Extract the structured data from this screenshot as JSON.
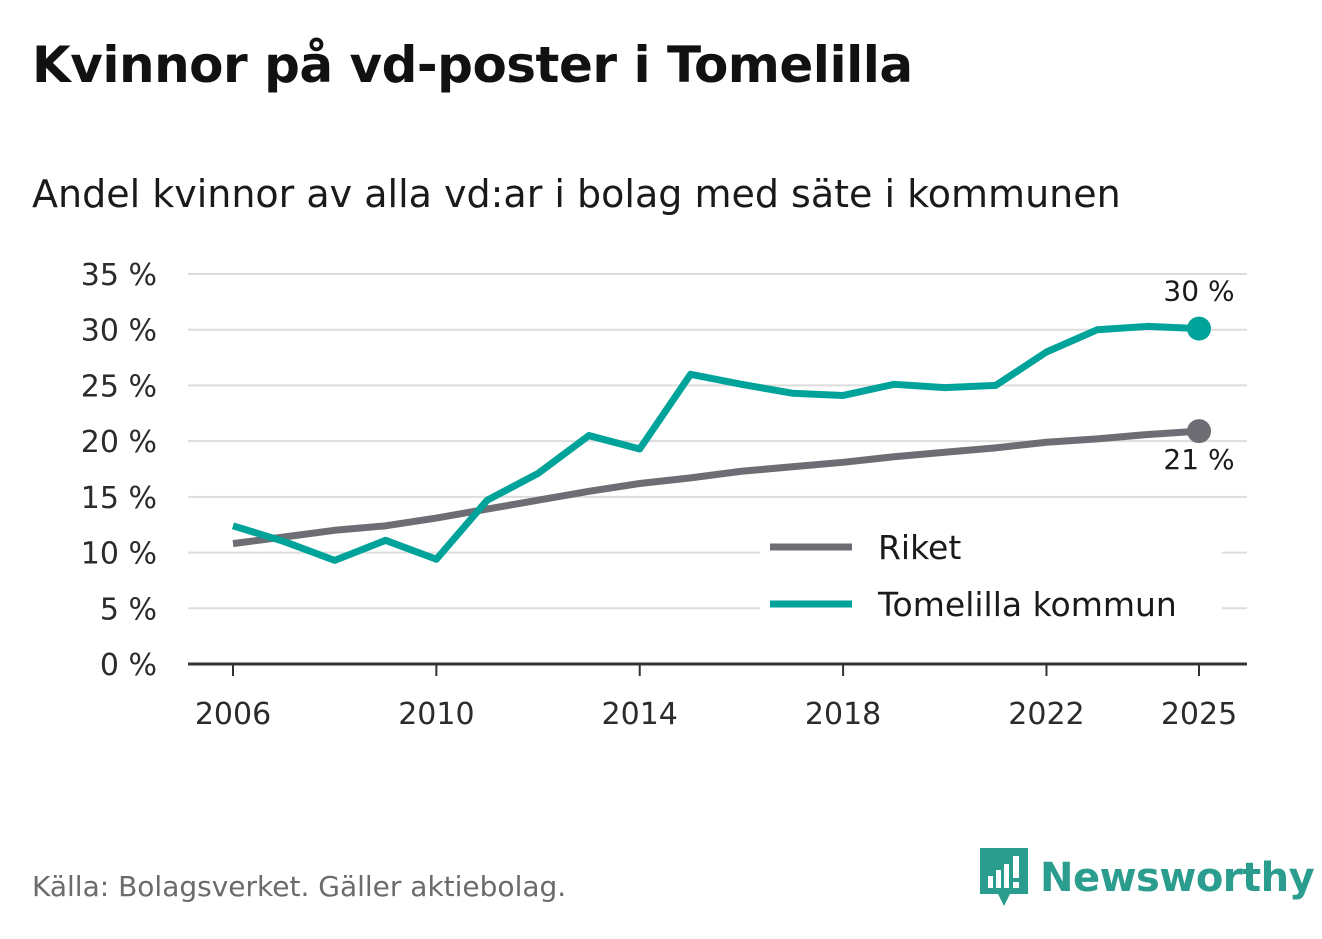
{
  "header": {
    "title": "Kvinnor på vd-poster i Tomelilla",
    "subtitle": "Andel kvinnor av alla vd:ar i bolag med säte i kommunen"
  },
  "footer": {
    "source": "Källa: Bolagsverket. Gäller aktiebolag.",
    "brand": "Newsworthy",
    "brand_icon": "newsworthy-logo-icon"
  },
  "colors": {
    "riket": "#6e6d73",
    "tomelilla": "#00a39a",
    "grid": "#dddddd",
    "axis": "#333333",
    "brand": "#2a9d8f"
  },
  "chart_data": {
    "type": "line",
    "title": "Kvinnor på vd-poster i Tomelilla",
    "subtitle": "Andel kvinnor av alla vd:ar i bolag med säte i kommunen",
    "xlabel": "",
    "ylabel": "",
    "x": [
      2006,
      2007,
      2008,
      2009,
      2010,
      2011,
      2012,
      2013,
      2014,
      2015,
      2016,
      2017,
      2018,
      2019,
      2020,
      2021,
      2022,
      2023,
      2024,
      2025
    ],
    "x_ticks": [
      "2006",
      "2010",
      "2014",
      "2018",
      "2022",
      "2025"
    ],
    "y_ticks": [
      "0 %",
      "5 %",
      "10 %",
      "15 %",
      "20 %",
      "25 %",
      "30 %",
      "35 %"
    ],
    "y_tick_values": [
      0,
      5,
      10,
      15,
      20,
      25,
      30,
      35
    ],
    "ylim": [
      0,
      35
    ],
    "xlim": [
      2006,
      2025
    ],
    "grid": true,
    "legend_position": "bottom-right",
    "series": [
      {
        "name": "Riket",
        "values": [
          10.8,
          11.4,
          12.0,
          12.4,
          13.1,
          13.9,
          14.7,
          15.5,
          16.2,
          16.7,
          17.3,
          17.7,
          18.1,
          18.6,
          19.0,
          19.4,
          19.9,
          20.2,
          20.6,
          20.9
        ],
        "end_label": "21 %"
      },
      {
        "name": "Tomelilla kommun",
        "values": [
          12.4,
          11.0,
          9.3,
          11.1,
          9.4,
          14.7,
          17.1,
          20.5,
          19.3,
          26.0,
          25.1,
          24.3,
          24.1,
          25.1,
          24.8,
          25.0,
          28.0,
          30.0,
          30.3,
          30.1
        ],
        "end_label": "30 %"
      }
    ]
  }
}
